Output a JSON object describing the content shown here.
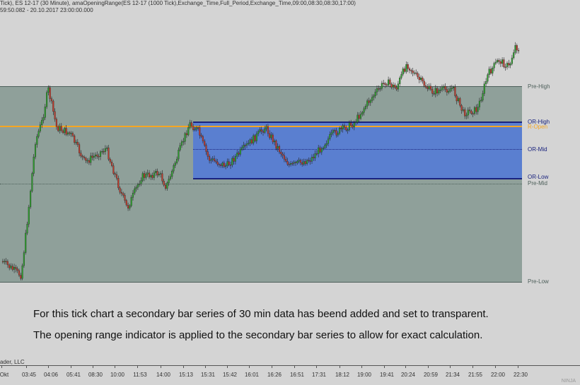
{
  "header": {
    "line1": "Tick), ES 12-17 (30 Minute), amaOpeningRange(ES 12-17 (1000 Tick),Exchange_Time,Full_Period,Exchange_Time,09:00,08:30,08:30,17:00)",
    "line2": "59:50.082 - 20.10.2017 23:00:00.000"
  },
  "levels": {
    "pre_high": "Pre-High",
    "or_high": "OR-High",
    "r_open": "R-Open",
    "or_mid": "OR-Mid",
    "or_low": "OR-Low",
    "pre_mid": "Pre-Mid",
    "pre_low": "Pre-Low"
  },
  "colors": {
    "panel": "#8fa09a",
    "or_box": "#5a7fd0",
    "or_line": "#1a237e",
    "r_open": "#f5a623",
    "up": "#2e9e2e",
    "down": "#c0392b"
  },
  "notes": [
    "For this tick chart a secondary bar series of 30 min data has beend added and set to transparent.",
    "The opening range indicator is applied to the secondary bar series to allow for exact calculation."
  ],
  "footer": {
    "copyright": "ader, LLC",
    "logo": "NINJA"
  },
  "time_axis": [
    "Okt",
    "03:45",
    "04:06",
    "05:41",
    "08:30",
    "10:00",
    "11:53",
    "14:00",
    "15:13",
    "15:31",
    "15:42",
    "16:01",
    "16:26",
    "16:51",
    "17:31",
    "18:12",
    "19:00",
    "19:41",
    "20:24",
    "20:59",
    "21:34",
    "21:55",
    "22:00",
    "22:30"
  ]
}
